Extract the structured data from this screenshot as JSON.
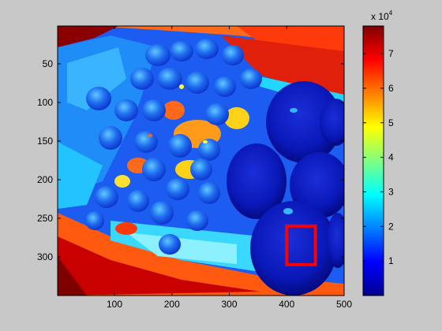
{
  "chart_data": {
    "type": "heatmap",
    "title": "",
    "xlabel": "",
    "ylabel": "",
    "colormap": "jet",
    "xlim": [
      1,
      500
    ],
    "ylim": [
      1,
      350
    ],
    "y_direction": "reverse",
    "x_ticks": [
      {
        "value": 100,
        "label": "100"
      },
      {
        "value": 200,
        "label": "200"
      },
      {
        "value": 300,
        "label": "300"
      },
      {
        "value": 400,
        "label": "400"
      },
      {
        "value": 500,
        "label": "500"
      }
    ],
    "y_ticks": [
      {
        "value": 50,
        "label": "50"
      },
      {
        "value": 100,
        "label": "100"
      },
      {
        "value": 150,
        "label": "150"
      },
      {
        "value": 200,
        "label": "200"
      },
      {
        "value": 250,
        "label": "250"
      },
      {
        "value": 300,
        "label": "300"
      }
    ],
    "colorbar": {
      "clim": [
        0,
        78000
      ],
      "multiplier_base": "x 10",
      "multiplier_exponent": "4",
      "ticks": [
        {
          "value": 10000,
          "label": "1"
        },
        {
          "value": 20000,
          "label": "2"
        },
        {
          "value": 30000,
          "label": "3"
        },
        {
          "value": 40000,
          "label": "4"
        },
        {
          "value": 50000,
          "label": "5"
        },
        {
          "value": 60000,
          "label": "6"
        },
        {
          "value": 70000,
          "label": "7"
        }
      ]
    },
    "annotation_box": {
      "x0": 400,
      "x1": 450,
      "y0": 260,
      "y1": 310,
      "color": "#ff0000"
    },
    "image_content": "grapes and plums"
  },
  "colors": {
    "figure_background": "#c8c8c8",
    "box": "#ff0000"
  }
}
